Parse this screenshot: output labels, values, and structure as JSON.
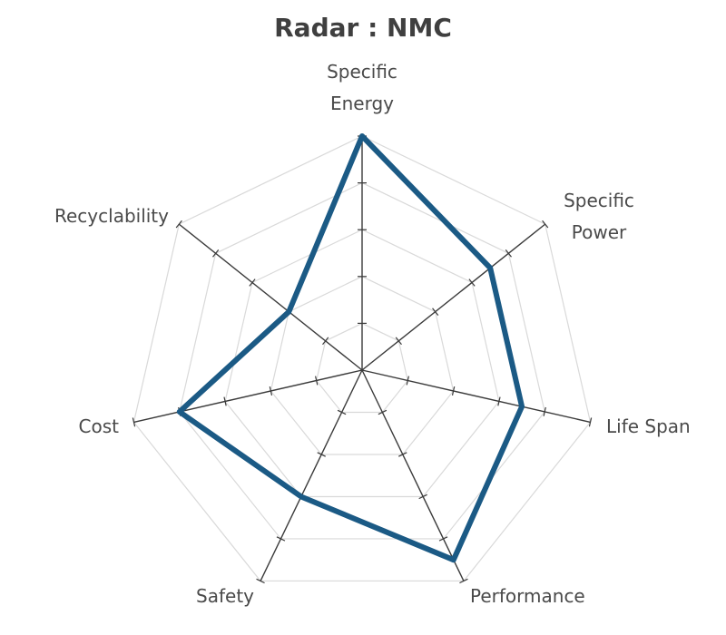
{
  "chart_data": {
    "type": "radar",
    "title": "Radar : NMC",
    "axes": [
      [
        "Specific",
        "Energy"
      ],
      [
        "Specific",
        "Power"
      ],
      [
        "Life Span"
      ],
      [
        "Performance"
      ],
      [
        "Safety"
      ],
      [
        "Cost"
      ],
      [
        "Recyclability"
      ]
    ],
    "series": [
      {
        "values": [
          5,
          3.5,
          3.5,
          4.5,
          3,
          4,
          2
        ]
      }
    ],
    "range": [
      0,
      5
    ],
    "levels": 5,
    "grid": true,
    "colors": {
      "series": "#1b5a85",
      "grid": "#d9d9d9",
      "axis": "#3a3a3a",
      "text": "#4a4a4a"
    }
  }
}
